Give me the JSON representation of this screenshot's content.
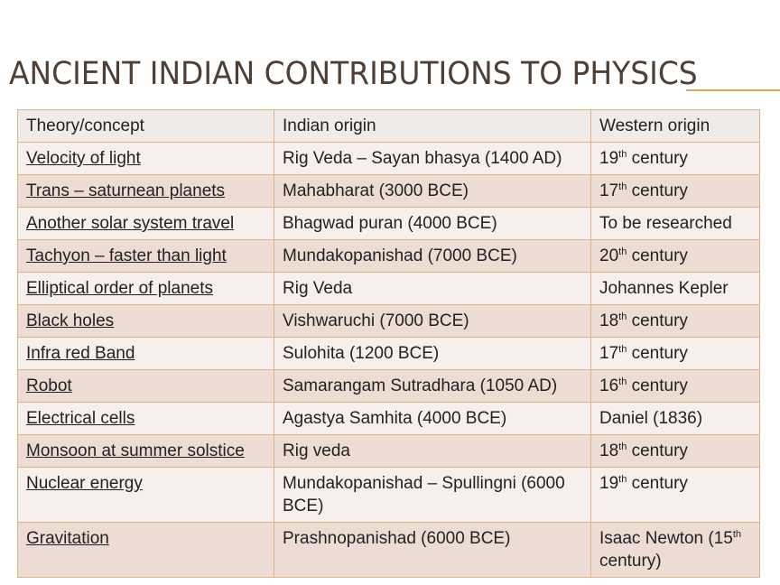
{
  "slide": {
    "title": "Ancient Indian contributions to Physics"
  },
  "table": {
    "headers": [
      "Theory/concept",
      "Indian origin",
      "Western origin"
    ],
    "rows": [
      {
        "concept": "Velocity of light",
        "indian": "Rig Veda – Sayan bhasya  (1400 AD)",
        "western_pre": "19",
        "western_sup": "th",
        "western_post": " century"
      },
      {
        "concept": "Trans – saturnean planets",
        "indian": "Mahabharat (3000 BCE)",
        "western_pre": "17",
        "western_sup": "th",
        "western_post": " century"
      },
      {
        "concept": "Another solar system travel",
        "indian": "Bhagwad puran (4000 BCE)",
        "western_pre": "To be researched",
        "western_sup": "",
        "western_post": ""
      },
      {
        "concept": "Tachyon – faster than light",
        "indian": "Mundakopanishad (7000 BCE)",
        "western_pre": "20",
        "western_sup": "th",
        "western_post": " century"
      },
      {
        "concept": "Elliptical order of planets",
        "indian": "Rig Veda",
        "western_pre": "Johannes Kepler",
        "western_sup": "",
        "western_post": ""
      },
      {
        "concept": "Black holes",
        "indian": "Vishwaruchi (7000 BCE)",
        "western_pre": "18",
        "western_sup": "th",
        "western_post": " century"
      },
      {
        "concept": "Infra red Band",
        "indian": "Sulohita (1200 BCE)",
        "western_pre": "17",
        "western_sup": "th",
        "western_post": " century"
      },
      {
        "concept": "Robot",
        "indian": "Samarangam Sutradhara (1050 AD)",
        "western_pre": "16",
        "western_sup": "th",
        "western_post": " century"
      },
      {
        "concept": "Electrical cells",
        "indian": "Agastya Samhita (4000 BCE)",
        "western_pre": "Daniel (1836)",
        "western_sup": "",
        "western_post": ""
      },
      {
        "concept": "Monsoon at summer solstice",
        "indian": "Rig veda",
        "western_pre": "18",
        "western_sup": "th",
        "western_post": " century"
      },
      {
        "concept": "Nuclear energy",
        "indian": "Mundakopanishad – Spullingni (6000 BCE)",
        "western_pre": "19",
        "western_sup": "th",
        "western_post": " century"
      },
      {
        "concept": "Gravitation",
        "indian": "Prashnopanishad (6000 BCE)",
        "western_pre": "Isaac Newton (15",
        "western_sup": "th",
        "western_post": " century)"
      }
    ]
  },
  "colors": {
    "title": "#4f3f35",
    "accent_rule": "#e0a85a",
    "border": "#ddb48a",
    "row_odd": "#eddcd4",
    "row_even": "#f6efec",
    "header_bg": "#f0ebe6"
  }
}
